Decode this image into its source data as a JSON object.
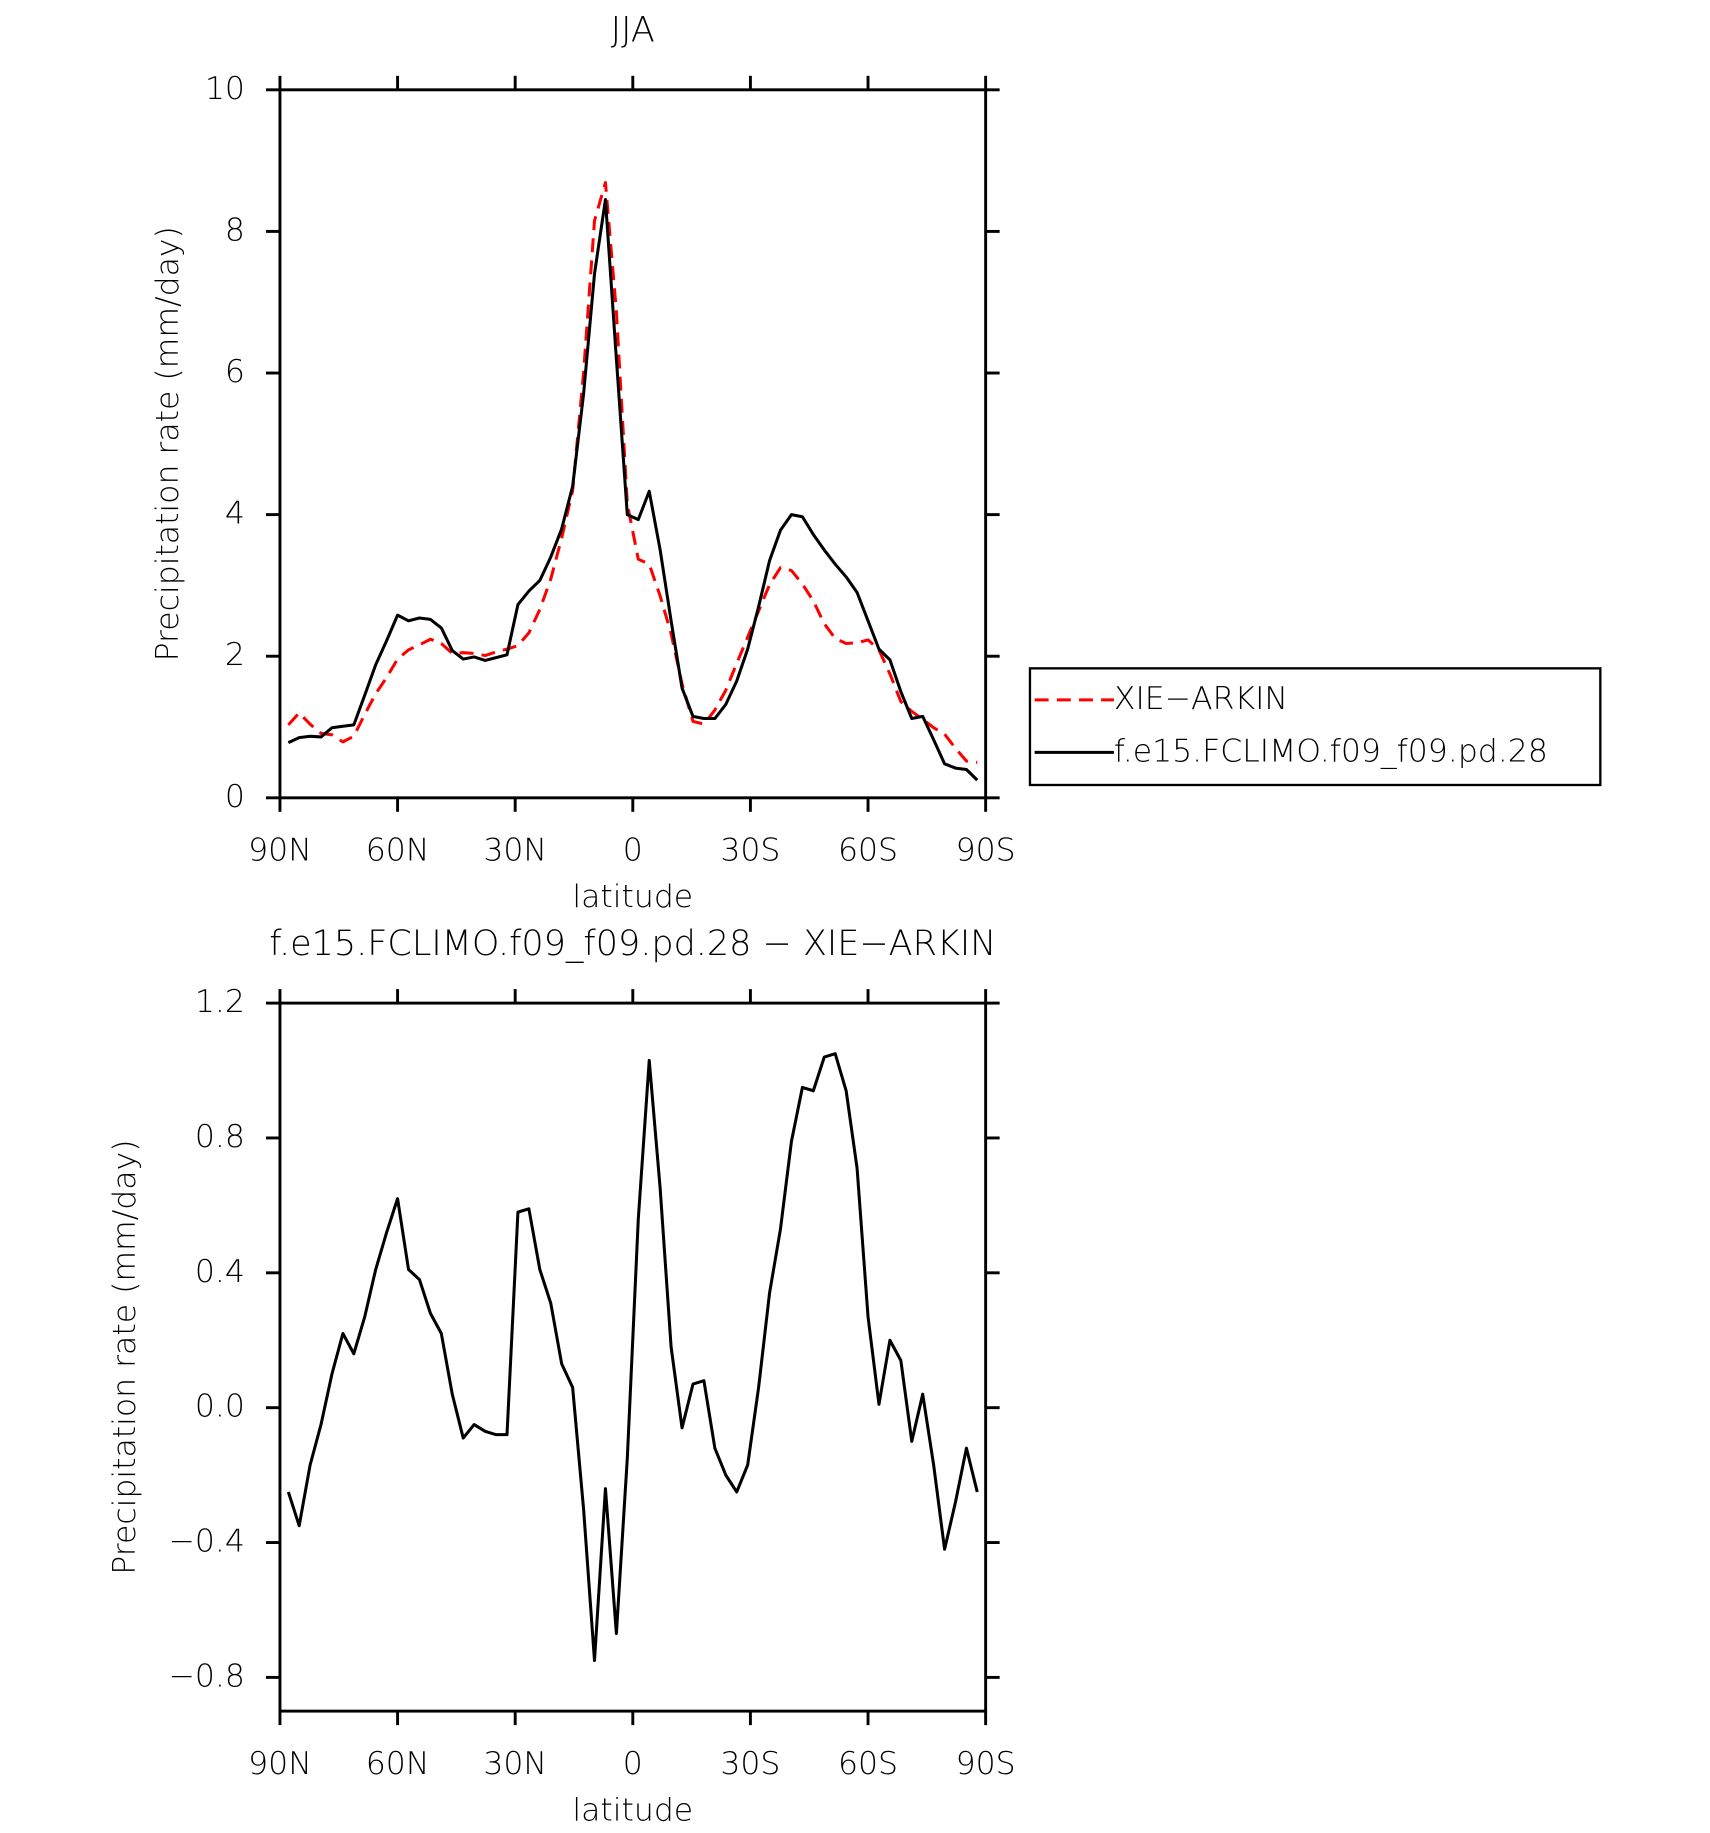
{
  "chart_data": [
    {
      "type": "line",
      "title": "JJA",
      "x_label": "latitude",
      "y_label": "Precipitation rate (mm/day)",
      "x": [
        87.86,
        85.1,
        82.31,
        79.53,
        76.74,
        73.95,
        71.16,
        68.37,
        65.58,
        62.79,
        60.0,
        57.21,
        54.42,
        51.63,
        48.84,
        46.05,
        43.26,
        40.47,
        37.67,
        34.88,
        32.09,
        29.3,
        26.51,
        23.72,
        20.93,
        18.14,
        15.35,
        12.56,
        9.77,
        6.98,
        4.19,
        1.4,
        -1.4,
        -4.19,
        -6.98,
        -9.77,
        -12.56,
        -15.35,
        -18.14,
        -20.93,
        -23.72,
        -26.51,
        -29.3,
        -32.09,
        -34.88,
        -37.67,
        -40.47,
        -43.26,
        -46.05,
        -48.84,
        -51.63,
        -54.42,
        -57.21,
        -60.0,
        -62.79,
        -65.58,
        -68.37,
        -71.16,
        -73.95,
        -76.74,
        -79.53,
        -82.31,
        -85.1,
        -87.86
      ],
      "series": [
        {
          "name": "XIE−ARKIN",
          "color": "#ff0000",
          "dash": true,
          "values": [
            1.03,
            1.2,
            1.04,
            0.91,
            0.89,
            0.79,
            0.87,
            1.18,
            1.47,
            1.7,
            1.96,
            2.09,
            2.16,
            2.24,
            2.18,
            2.04,
            2.05,
            2.04,
            2.01,
            2.06,
            2.1,
            2.15,
            2.33,
            2.66,
            3.09,
            3.67,
            4.34,
            6.0,
            8.15,
            8.69,
            6.87,
            4.15,
            3.37,
            3.3,
            2.85,
            2.32,
            1.61,
            1.08,
            1.04,
            1.24,
            1.52,
            1.9,
            2.27,
            2.64,
            3.01,
            3.25,
            3.21,
            3.02,
            2.78,
            2.46,
            2.25,
            2.18,
            2.19,
            2.23,
            2.09,
            1.75,
            1.36,
            1.22,
            1.11,
            0.99,
            0.9,
            0.7,
            0.52,
            0.5
          ]
        },
        {
          "name": "f.e15.FCLIMO.f09_f09.pd.28",
          "color": "#000000",
          "dash": false,
          "values": [
            0.78,
            0.85,
            0.87,
            0.86,
            0.99,
            1.01,
            1.03,
            1.45,
            1.88,
            2.22,
            2.58,
            2.5,
            2.54,
            2.52,
            2.4,
            2.08,
            1.96,
            1.99,
            1.94,
            1.98,
            2.02,
            2.73,
            2.92,
            3.07,
            3.4,
            3.8,
            4.4,
            5.7,
            7.4,
            8.45,
            6.2,
            4.0,
            3.93,
            4.33,
            3.5,
            2.5,
            1.55,
            1.15,
            1.12,
            1.12,
            1.32,
            1.65,
            2.1,
            2.7,
            3.35,
            3.78,
            4.0,
            3.97,
            3.72,
            3.5,
            3.3,
            3.12,
            2.9,
            2.5,
            2.1,
            1.95,
            1.5,
            1.12,
            1.15,
            0.82,
            0.48,
            0.42,
            0.4,
            0.25
          ]
        }
      ],
      "xlim": [
        90,
        -90
      ],
      "xticks": [
        {
          "value": 90,
          "label": "90N"
        },
        {
          "value": 60,
          "label": "60N"
        },
        {
          "value": 30,
          "label": "30N"
        },
        0,
        {
          "value": -30,
          "label": "30S"
        },
        {
          "value": -60,
          "label": "60S"
        },
        {
          "value": -90,
          "label": "90S"
        }
      ],
      "ylim": [
        0,
        10
      ],
      "yticks": [
        0,
        2,
        4,
        6,
        8,
        10
      ],
      "legend": "right"
    },
    {
      "type": "line",
      "title": "f.e15.FCLIMO.f09_f09.pd.28 − XIE−ARKIN",
      "x_label": "latitude",
      "y_label": "Precipitation rate (mm/day)",
      "x": [
        87.86,
        85.1,
        82.31,
        79.53,
        76.74,
        73.95,
        71.16,
        68.37,
        65.58,
        62.79,
        60.0,
        57.21,
        54.42,
        51.63,
        48.84,
        46.05,
        43.26,
        40.47,
        37.67,
        34.88,
        32.09,
        29.3,
        26.51,
        23.72,
        20.93,
        18.14,
        15.35,
        12.56,
        9.77,
        6.98,
        4.19,
        1.4,
        -1.4,
        -4.19,
        -6.98,
        -9.77,
        -12.56,
        -15.35,
        -18.14,
        -20.93,
        -23.72,
        -26.51,
        -29.3,
        -32.09,
        -34.88,
        -37.67,
        -40.47,
        -43.26,
        -46.05,
        -48.84,
        -51.63,
        -54.42,
        -57.21,
        -60.0,
        -62.79,
        -65.58,
        -68.37,
        -71.16,
        -73.95,
        -76.74,
        -79.53,
        -82.31,
        -85.1,
        -87.86
      ],
      "series": [
        {
          "color": "#000000",
          "dash": false,
          "values": [
            -0.25,
            -0.35,
            -0.17,
            -0.05,
            0.1,
            0.22,
            0.16,
            0.27,
            0.41,
            0.52,
            0.62,
            0.41,
            0.38,
            0.28,
            0.22,
            0.04,
            -0.09,
            -0.05,
            -0.07,
            -0.08,
            -0.08,
            0.58,
            0.59,
            0.41,
            0.31,
            0.13,
            0.06,
            -0.3,
            -0.75,
            -0.24,
            -0.67,
            -0.15,
            0.56,
            1.03,
            0.65,
            0.18,
            -0.06,
            0.07,
            0.08,
            -0.12,
            -0.2,
            -0.25,
            -0.17,
            0.06,
            0.34,
            0.53,
            0.79,
            0.95,
            0.94,
            1.04,
            1.05,
            0.94,
            0.71,
            0.27,
            0.01,
            0.2,
            0.14,
            -0.1,
            0.04,
            -0.17,
            -0.42,
            -0.28,
            -0.12,
            -0.25
          ]
        }
      ],
      "xlim": [
        90,
        -90
      ],
      "xticks": [
        {
          "value": 90,
          "label": "90N"
        },
        {
          "value": 60,
          "label": "60N"
        },
        {
          "value": 30,
          "label": "30N"
        },
        0,
        {
          "value": -30,
          "label": "30S"
        },
        {
          "value": -60,
          "label": "60S"
        },
        {
          "value": -90,
          "label": "90S"
        }
      ],
      "ylim": [
        -0.9,
        1.2
      ],
      "yticks": [
        {
          "value": -0.8,
          "label": "−0.8"
        },
        {
          "value": -0.4,
          "label": "−0.4"
        },
        {
          "value": 0,
          "label": "0.0"
        },
        0.4,
        0.8,
        1.2
      ]
    }
  ]
}
